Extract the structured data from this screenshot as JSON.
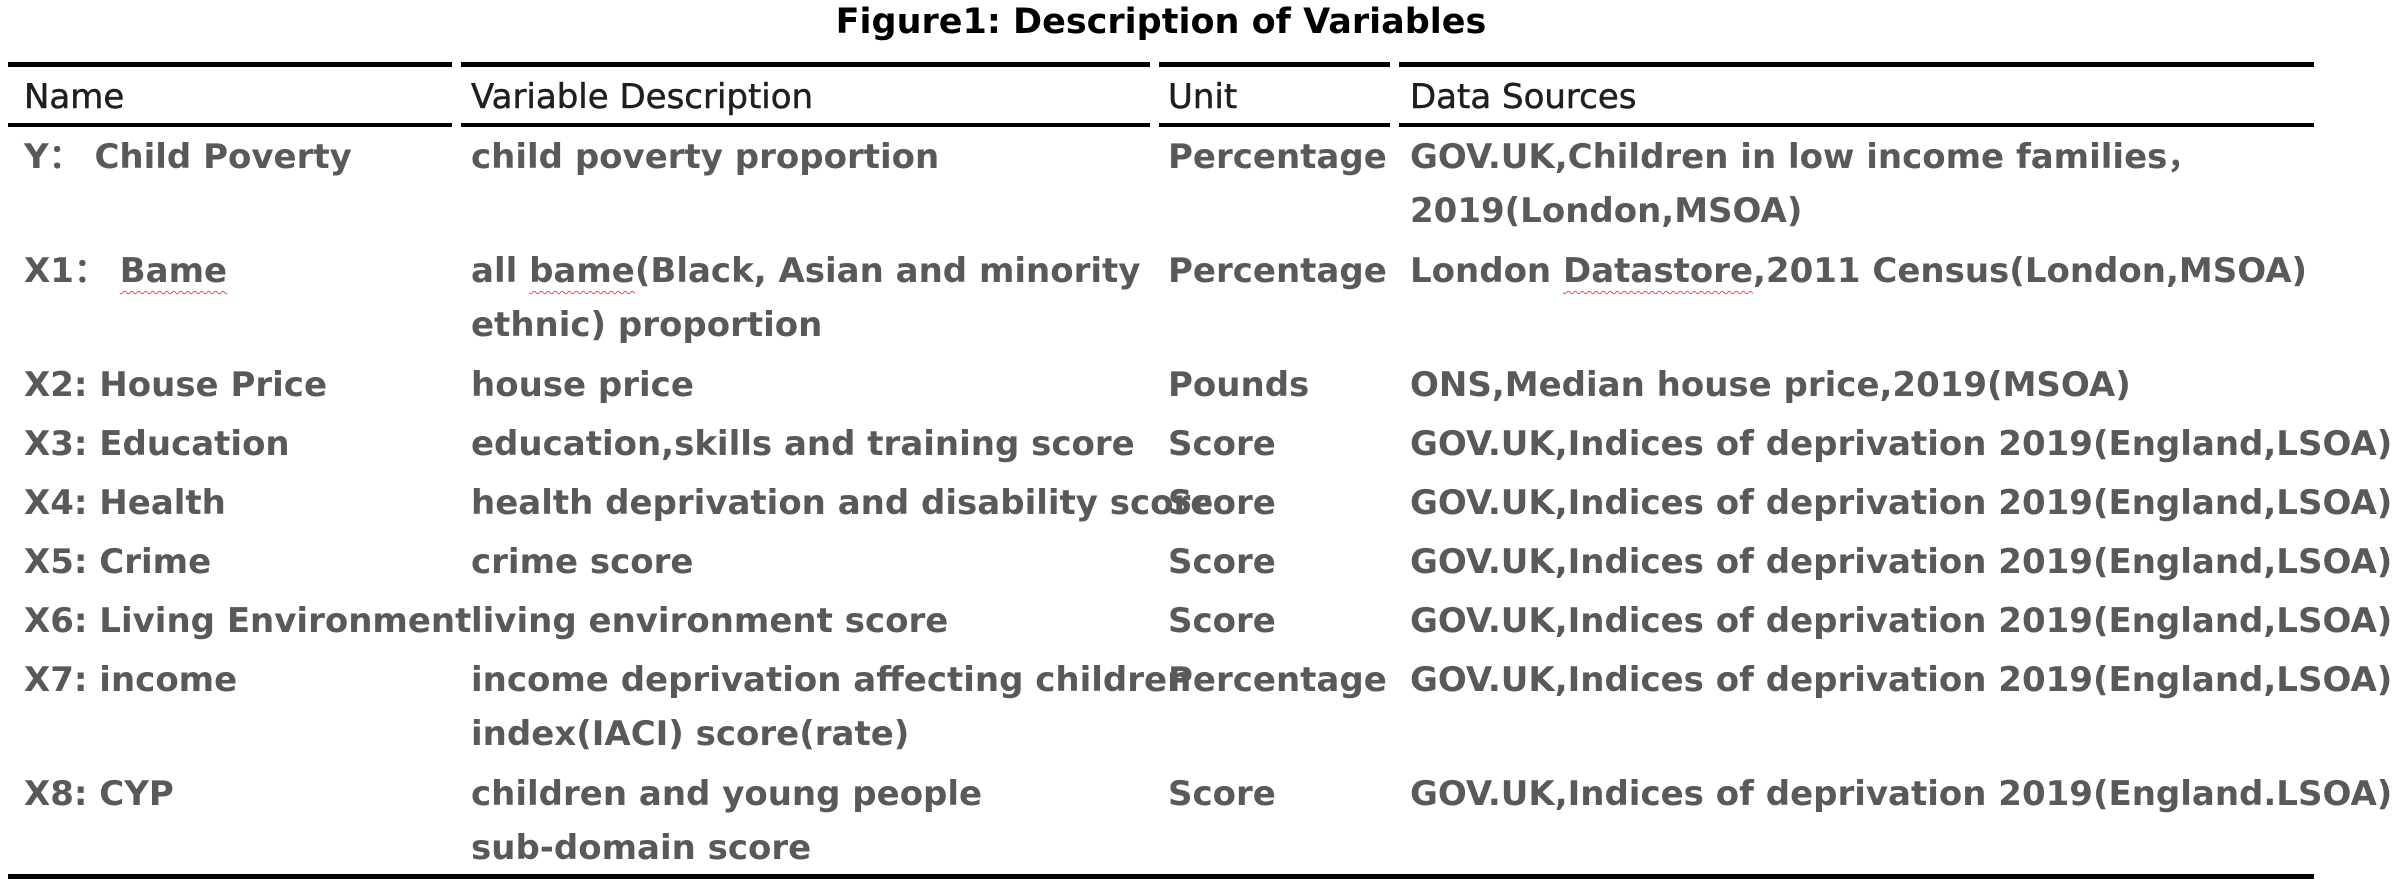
{
  "title": "Figure1: Description of Variables",
  "columns": [
    "Name",
    "Variable Description",
    "Unit",
    "Data Sources"
  ],
  "rows": [
    {
      "name": "Y： Child Poverty",
      "desc": [
        "child poverty proportion"
      ],
      "unit": "Percentage",
      "source": [
        "GOV.UK,Children in low income families，",
        "2019(London,MSOA)"
      ]
    },
    {
      "name_prefix": "X1： ",
      "name_word": "Bame",
      "desc_line1_prefix": "all ",
      "desc_line1_word": "bame",
      "desc_line1_suffix": "(Black, Asian and minority",
      "desc_line2": "ethnic) proportion",
      "unit": "Percentage",
      "source_prefix": "London ",
      "source_word": "Datastore",
      "source_suffix": ",2011 Census(London,MSOA)"
    },
    {
      "name": "X2: House Price",
      "desc": [
        "house price"
      ],
      "unit": "Pounds",
      "source": [
        "ONS,Median house price,2019(MSOA)"
      ]
    },
    {
      "name": "X3: Education",
      "desc": [
        "education,skills and training score"
      ],
      "unit": "Score",
      "source": [
        "GOV.UK,Indices of deprivation 2019(England,LSOA)"
      ]
    },
    {
      "name": "X4: Health",
      "desc": [
        "health deprivation and disability score"
      ],
      "unit": "Score",
      "source": [
        "GOV.UK,Indices of deprivation 2019(England,LSOA)"
      ]
    },
    {
      "name": "X5: Crime",
      "desc": [
        "crime score"
      ],
      "unit": "Score",
      "source": [
        "GOV.UK,Indices of deprivation 2019(England,LSOA)"
      ]
    },
    {
      "name": "X6: Living Environment",
      "desc": [
        "living environment score"
      ],
      "unit": "Score",
      "source": [
        "GOV.UK,Indices of deprivation 2019(England,LSOA)"
      ]
    },
    {
      "name": "X7: income",
      "desc": [
        "income deprivation affecting children",
        "index(IACI) score(rate)"
      ],
      "unit": "Percentage",
      "source": [
        "GOV.UK,Indices of deprivation 2019(England,LSOA)"
      ]
    },
    {
      "name": "X8: CYP",
      "desc": [
        "children and young people",
        "sub-domain score"
      ],
      "unit": "Score",
      "source": [
        "GOV.UK,Indices of deprivation 2019(England.LSOA)"
      ]
    }
  ]
}
